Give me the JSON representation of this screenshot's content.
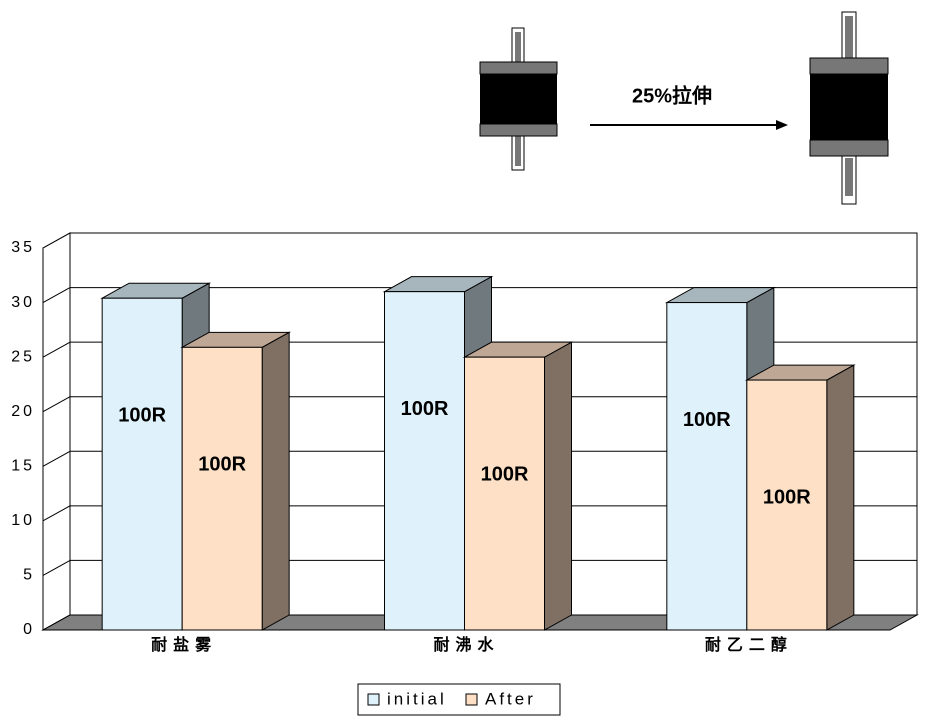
{
  "chart_data": {
    "type": "bar3d",
    "annotation": "25%拉伸",
    "categories": [
      "耐盐雾",
      "耐沸水",
      "耐乙二醇"
    ],
    "series": [
      {
        "name": "initial",
        "color": "#dff2fc",
        "values": [
          30.4,
          31.0,
          30.0
        ],
        "bar_labels": [
          "100R",
          "100R",
          "100R"
        ]
      },
      {
        "name": "After",
        "color": "#fde0c6",
        "values": [
          25.9,
          25.0,
          22.9
        ],
        "bar_labels": [
          "100R",
          "100R",
          "100R"
        ]
      }
    ],
    "ylim": [
      0,
      35
    ],
    "yticks": [
      0,
      5,
      10,
      15,
      20,
      25,
      30,
      35
    ],
    "grid": true
  }
}
